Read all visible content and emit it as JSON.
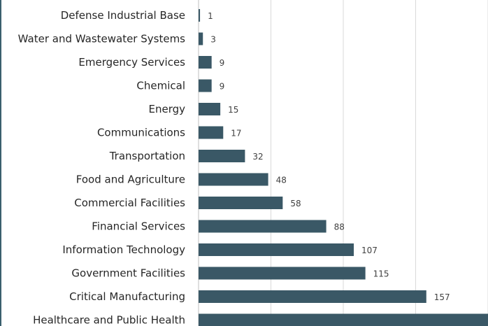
{
  "chart_data": {
    "type": "bar",
    "orientation": "horizontal",
    "categories": [
      "Defense Industrial Base",
      "Water and Wastewater Systems",
      "Emergency Services",
      "Chemical",
      "Energy",
      "Communications",
      "Transportation",
      "Food and Agriculture",
      "Commercial Facilities",
      "Financial Services",
      "Information Technology",
      "Government Facilities",
      "Critical Manufacturing",
      "Healthcare and Public Health"
    ],
    "values": [
      1,
      3,
      9,
      9,
      15,
      17,
      32,
      48,
      58,
      88,
      107,
      115,
      157,
      200
    ],
    "value_labels": [
      "1",
      "3",
      "9",
      "9",
      "15",
      "17",
      "32",
      "48",
      "58",
      "88",
      "107",
      "115",
      "157",
      ""
    ],
    "xlim": [
      0,
      200
    ],
    "grid": true,
    "bar_color": "#3a5866",
    "title": "",
    "xlabel": "",
    "ylabel": ""
  }
}
